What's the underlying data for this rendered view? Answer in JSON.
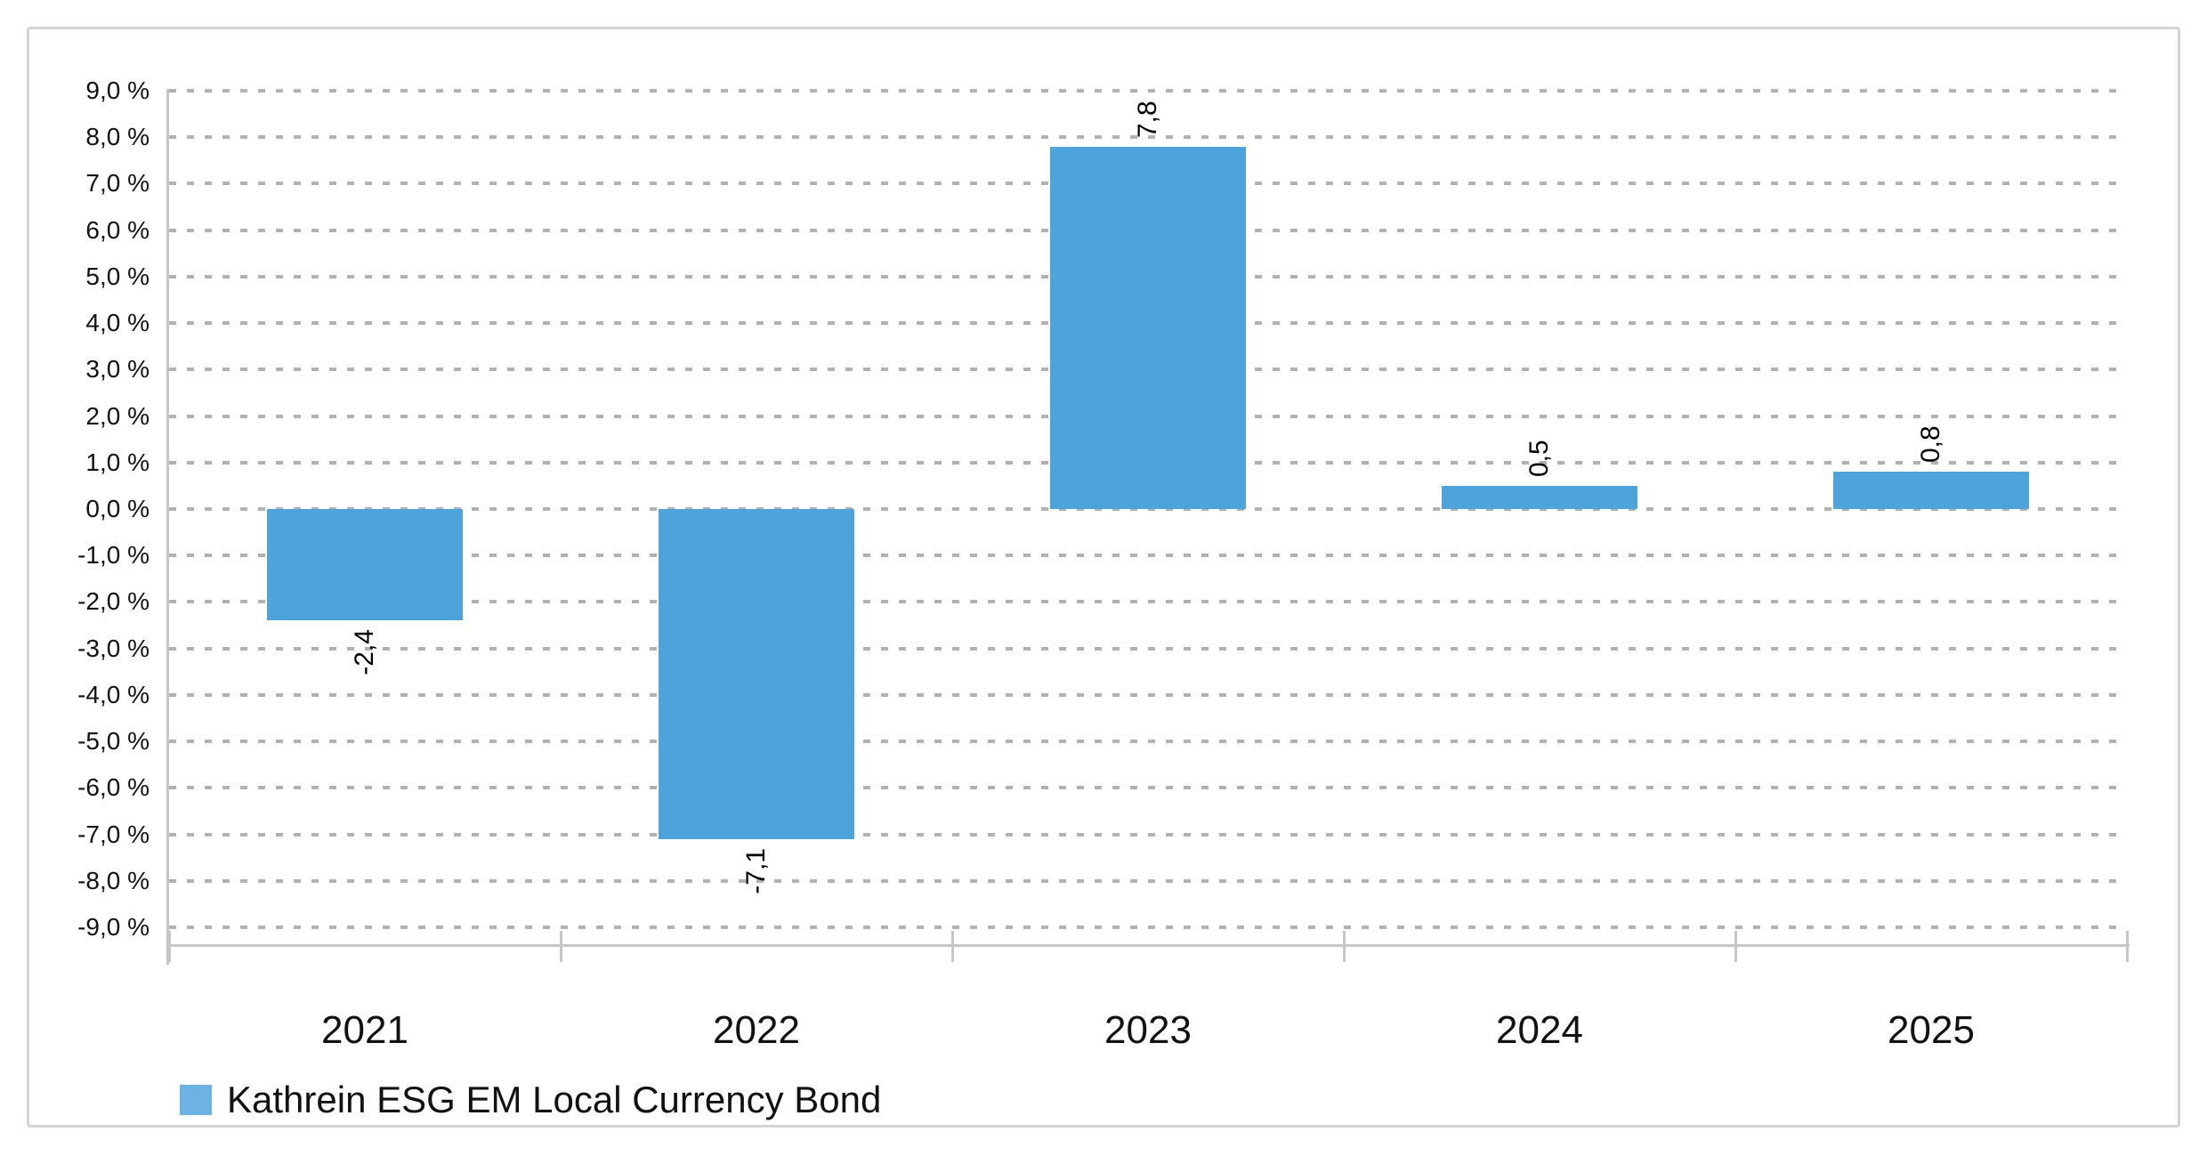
{
  "chart_data": {
    "type": "bar",
    "title": "",
    "xlabel": "",
    "ylabel": "",
    "categories": [
      "2021",
      "2022",
      "2023",
      "2024",
      "2025"
    ],
    "series": [
      {
        "name": "Kathrein ESG EM Local Currency Bond",
        "values": [
          -2.4,
          -7.1,
          7.8,
          0.5,
          0.8
        ],
        "value_labels": [
          "-2,4",
          "-7,1",
          "7,8",
          "0,5",
          "0,8"
        ],
        "color": "#4fa3db"
      }
    ],
    "ylim": [
      -9.0,
      9.0
    ],
    "ytick_step": 1.0,
    "ytick_labels": [
      "9,0 %",
      "8,0 %",
      "7,0 %",
      "6,0 %",
      "5,0 %",
      "4,0 %",
      "3,0 %",
      "2,0 %",
      "1,0 %",
      "0,0 %",
      "-1,0 %",
      "-2,0 %",
      "-3,0 %",
      "-4,0 %",
      "-5,0 %",
      "-6,0 %",
      "-7,0 %",
      "-8,0 %",
      "-9,0 %"
    ],
    "grid": "horizontal-dashed",
    "value_label_rotation_deg": -90,
    "legend_position": "bottom-left"
  },
  "legend": {
    "items": [
      {
        "label": "Kathrein ESG EM Local Currency Bond",
        "swatch_color": "#6cb3e3"
      }
    ]
  },
  "colors": {
    "bar": "#4fa3db",
    "legend_swatch": "#6cb3e3",
    "axis": "#c6c6c6",
    "gridline": "#b1b1b1",
    "frame_border": "#d4d4d4",
    "text": "#111111",
    "background": "#ffffff"
  }
}
